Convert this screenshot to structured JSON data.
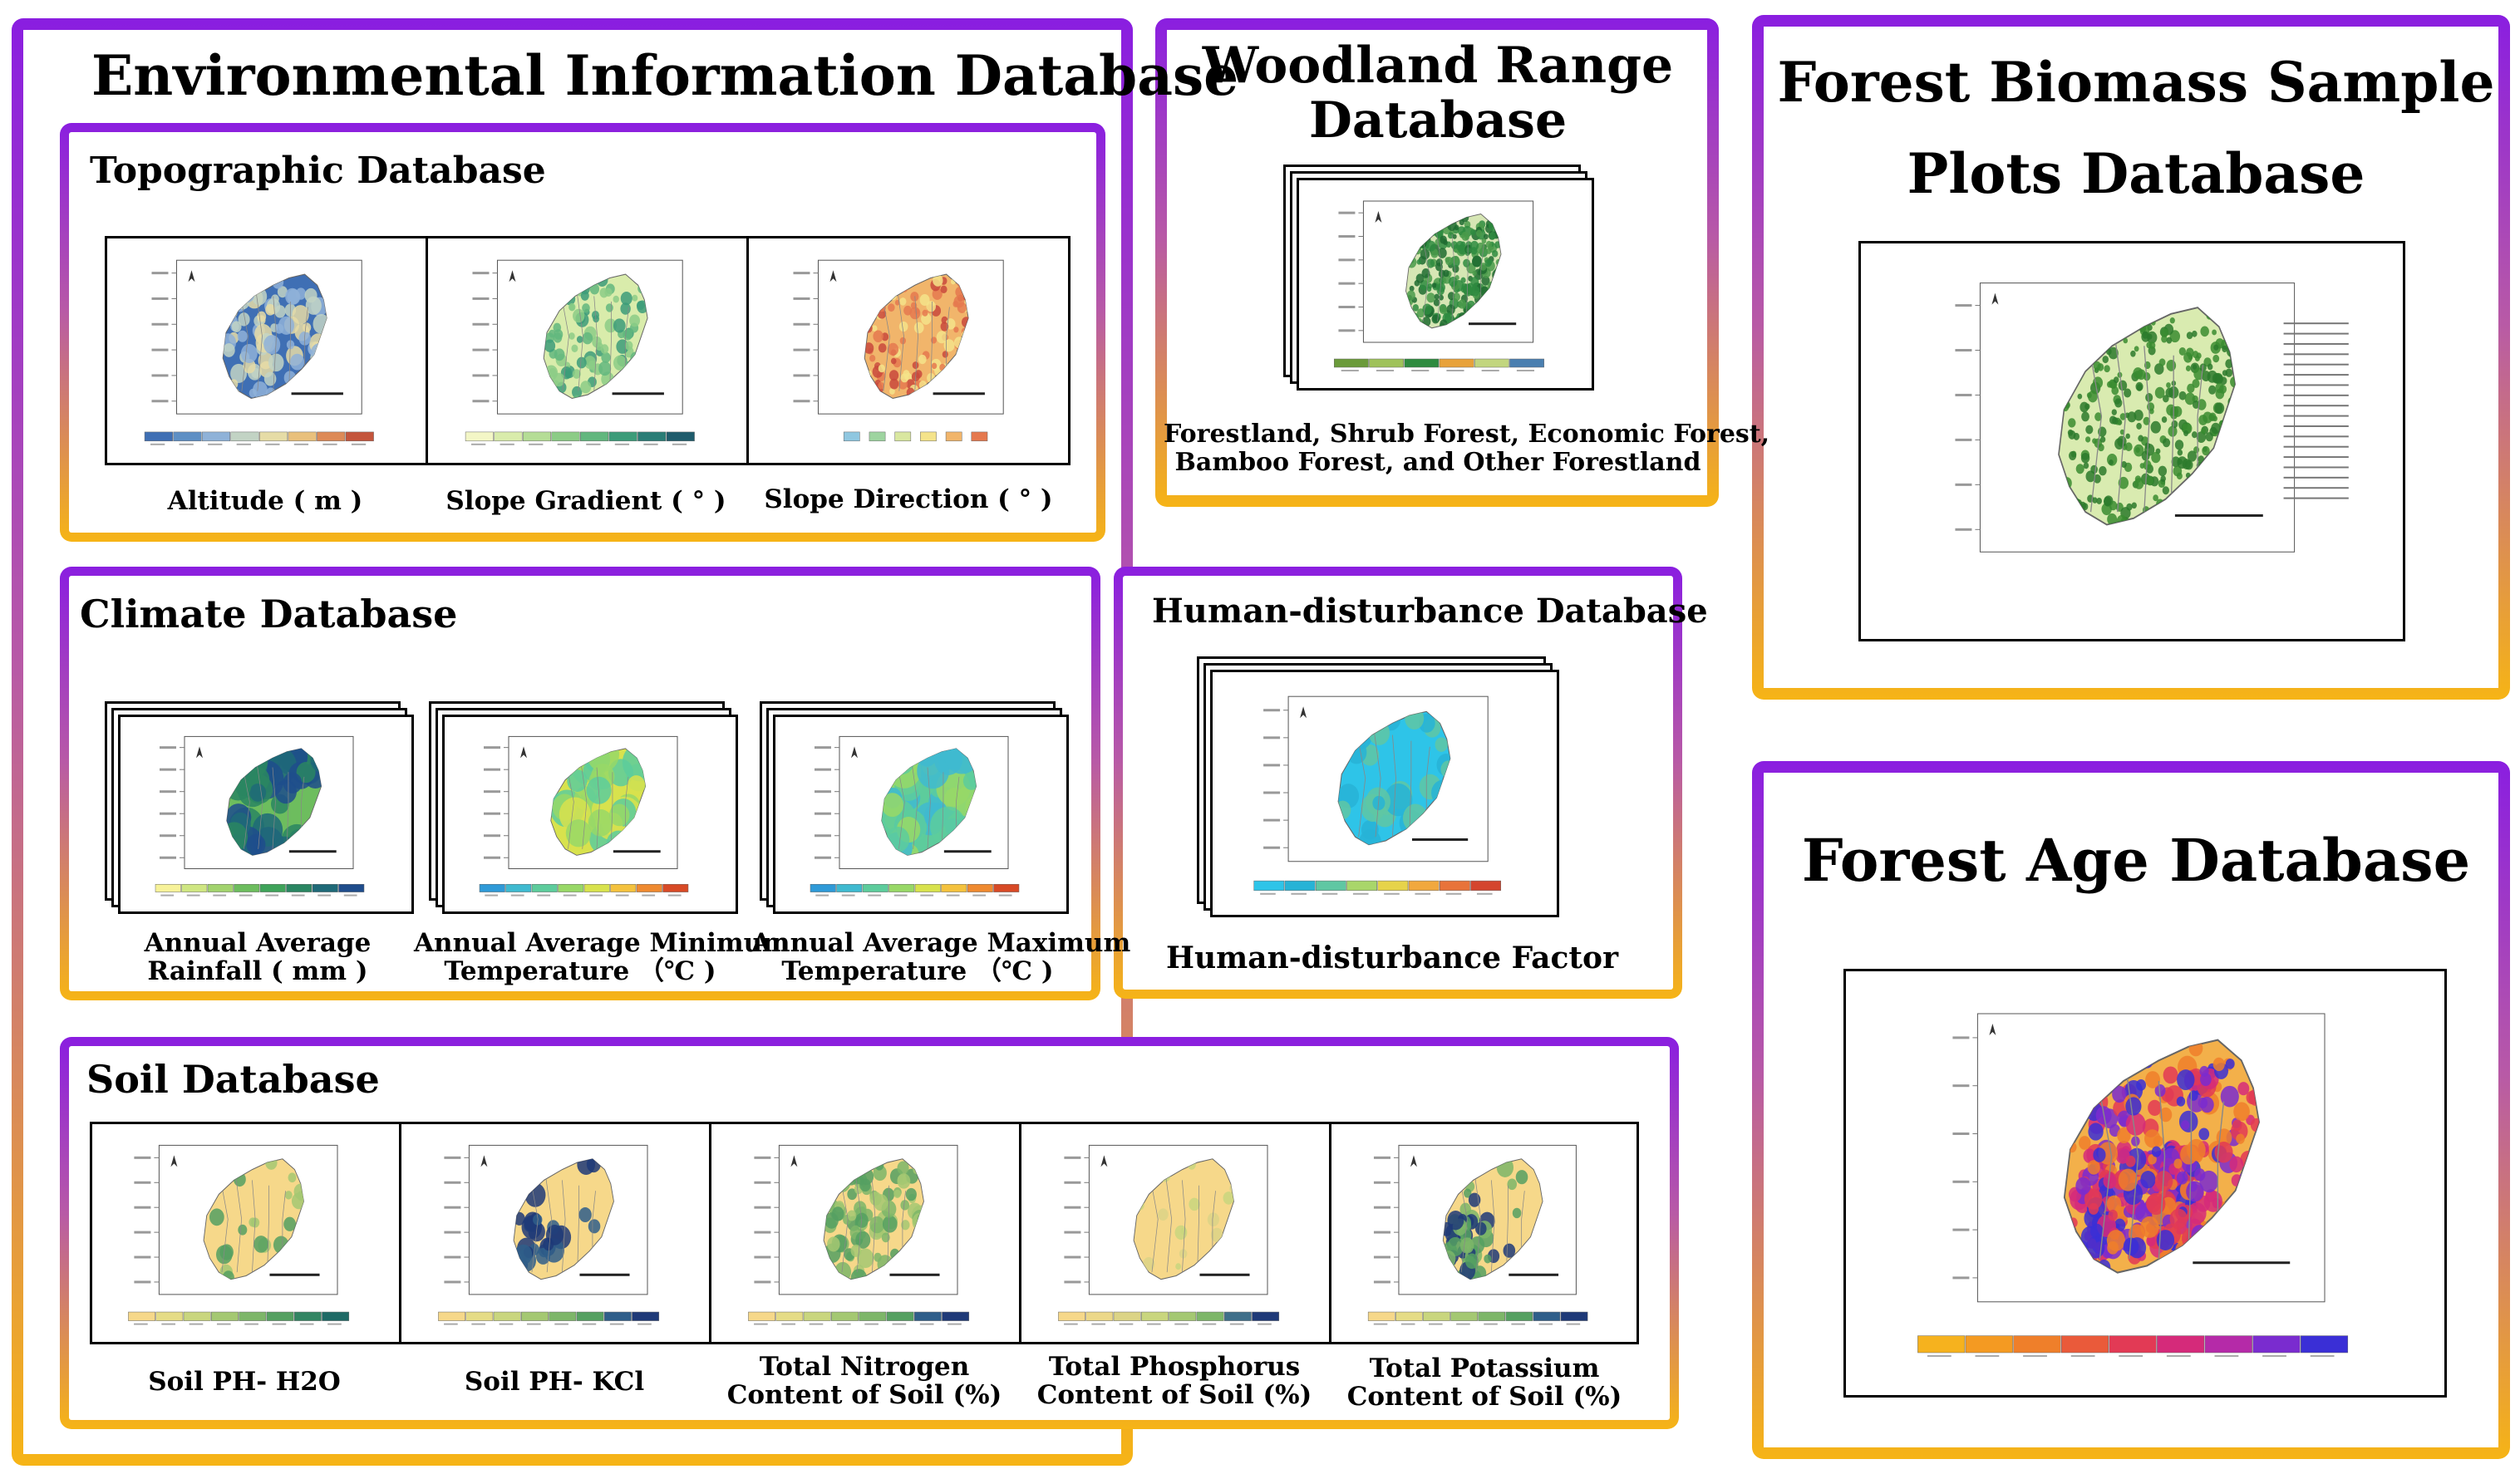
{
  "env": {
    "title": "Environmental Information Database",
    "topo": {
      "title": "Topographic Database",
      "items": [
        {
          "label": "Altitude ( m )",
          "palette": [
            "#3f6fb4",
            "#5e8fc4",
            "#8fb2d8",
            "#c2d3c4",
            "#e6dca6",
            "#e9c07c",
            "#dd8a57",
            "#c4553c"
          ]
        },
        {
          "label": "Slope Gradient ( ° )",
          "palette": [
            "#f3f6c6",
            "#d9ecab",
            "#b5dd96",
            "#8ccc86",
            "#62b77e",
            "#3c9c79",
            "#2a7d76",
            "#1f5c6c"
          ]
        },
        {
          "label": "Slope Direction ( ° )",
          "palette": [
            "#5aa6d8",
            "#8fc7e0",
            "#9ed4a0",
            "#d9e7a0",
            "#f4e38a",
            "#f1b56b",
            "#e5794f",
            "#c9493c"
          ]
        }
      ]
    },
    "climate": {
      "title": "Climate Database",
      "items": [
        {
          "label_lines": [
            "Annual Average",
            "Rainfall ( mm )"
          ],
          "palette": [
            "#f7f299",
            "#cfe682",
            "#a2d36e",
            "#6dbd5e",
            "#3fa35a",
            "#2a8662",
            "#1f6a78",
            "#1f4d8c"
          ]
        },
        {
          "label_lines": [
            "Annual Average Minimum",
            "Temperature （℃ )"
          ],
          "palette": [
            "#2f9ad8",
            "#3fbad0",
            "#5dcc9c",
            "#98d867",
            "#d8e24d",
            "#f4c23e",
            "#ef8a30",
            "#d84a26"
          ]
        },
        {
          "label_lines": [
            "Annual Average Maximum",
            "Temperature （℃ )"
          ],
          "palette": [
            "#2f9ad8",
            "#3fbad0",
            "#5dcc9c",
            "#98d867",
            "#d8e24d",
            "#f4c23e",
            "#ef8a30",
            "#d84a26"
          ]
        }
      ]
    },
    "soil": {
      "title": "Soil Database",
      "items": [
        {
          "label_lines": [
            "Soil PH- H2O"
          ],
          "palette": [
            "#f6d88a",
            "#e5dc86",
            "#c9d67e",
            "#a4c872",
            "#7db669",
            "#55a061",
            "#338563",
            "#1f6a66"
          ]
        },
        {
          "label_lines": [
            "Soil PH- KCl"
          ],
          "palette": [
            "#f6d88a",
            "#e5dc86",
            "#c9d67e",
            "#a4c872",
            "#7db669",
            "#55a061",
            "#2f5e8a",
            "#1f3a78"
          ]
        },
        {
          "label_lines": [
            "Total Nitrogen",
            "Content of Soil (%)"
          ],
          "palette": [
            "#f6d88a",
            "#e5dc86",
            "#c9d67e",
            "#a4c872",
            "#7db669",
            "#55a061",
            "#2f5e8a",
            "#1f3a78"
          ]
        },
        {
          "label_lines": [
            "Total Phosphorus",
            "Content of Soil (%)"
          ],
          "palette": [
            "#f6d88a",
            "#ecd889",
            "#dcd486",
            "#c9d67e",
            "#a4c872",
            "#7db669",
            "#3f6f8a",
            "#1f3a78"
          ]
        },
        {
          "label_lines": [
            "Total Potassium",
            "Content of Soil (%)"
          ],
          "palette": [
            "#f6d88a",
            "#e5dc86",
            "#c9d67e",
            "#a4c872",
            "#7db669",
            "#55a061",
            "#2f5e8a",
            "#1f3a78"
          ]
        }
      ]
    }
  },
  "woodland": {
    "title_lines": [
      "Woodland Range",
      "Database"
    ],
    "caption_lines": [
      "Forestland, Shrub Forest, Economic Forest,",
      "Bamboo Forest, and Other Forestland"
    ]
  },
  "human": {
    "title": "Human-disturbance Database",
    "label": "Human-disturbance  Factor",
    "palette": [
      "#2ec4e8",
      "#27b3d6",
      "#5fc7a3",
      "#a9d66a",
      "#e6d34a",
      "#f1a83e",
      "#e8733a",
      "#d4452e"
    ]
  },
  "biomass": {
    "title_lines": [
      "Forest Biomass Sample",
      "Plots Database"
    ]
  },
  "age": {
    "title": "Forest Age Database",
    "palette": [
      "#f6b21e",
      "#f49a22",
      "#ef7f2a",
      "#ea5a3a",
      "#e23a55",
      "#d52a7a",
      "#b52aa8",
      "#7a2ccf",
      "#3a2fd6"
    ]
  },
  "colors": {
    "frame_top": "#8a1ee0",
    "frame_bottom": "#f6b416"
  }
}
